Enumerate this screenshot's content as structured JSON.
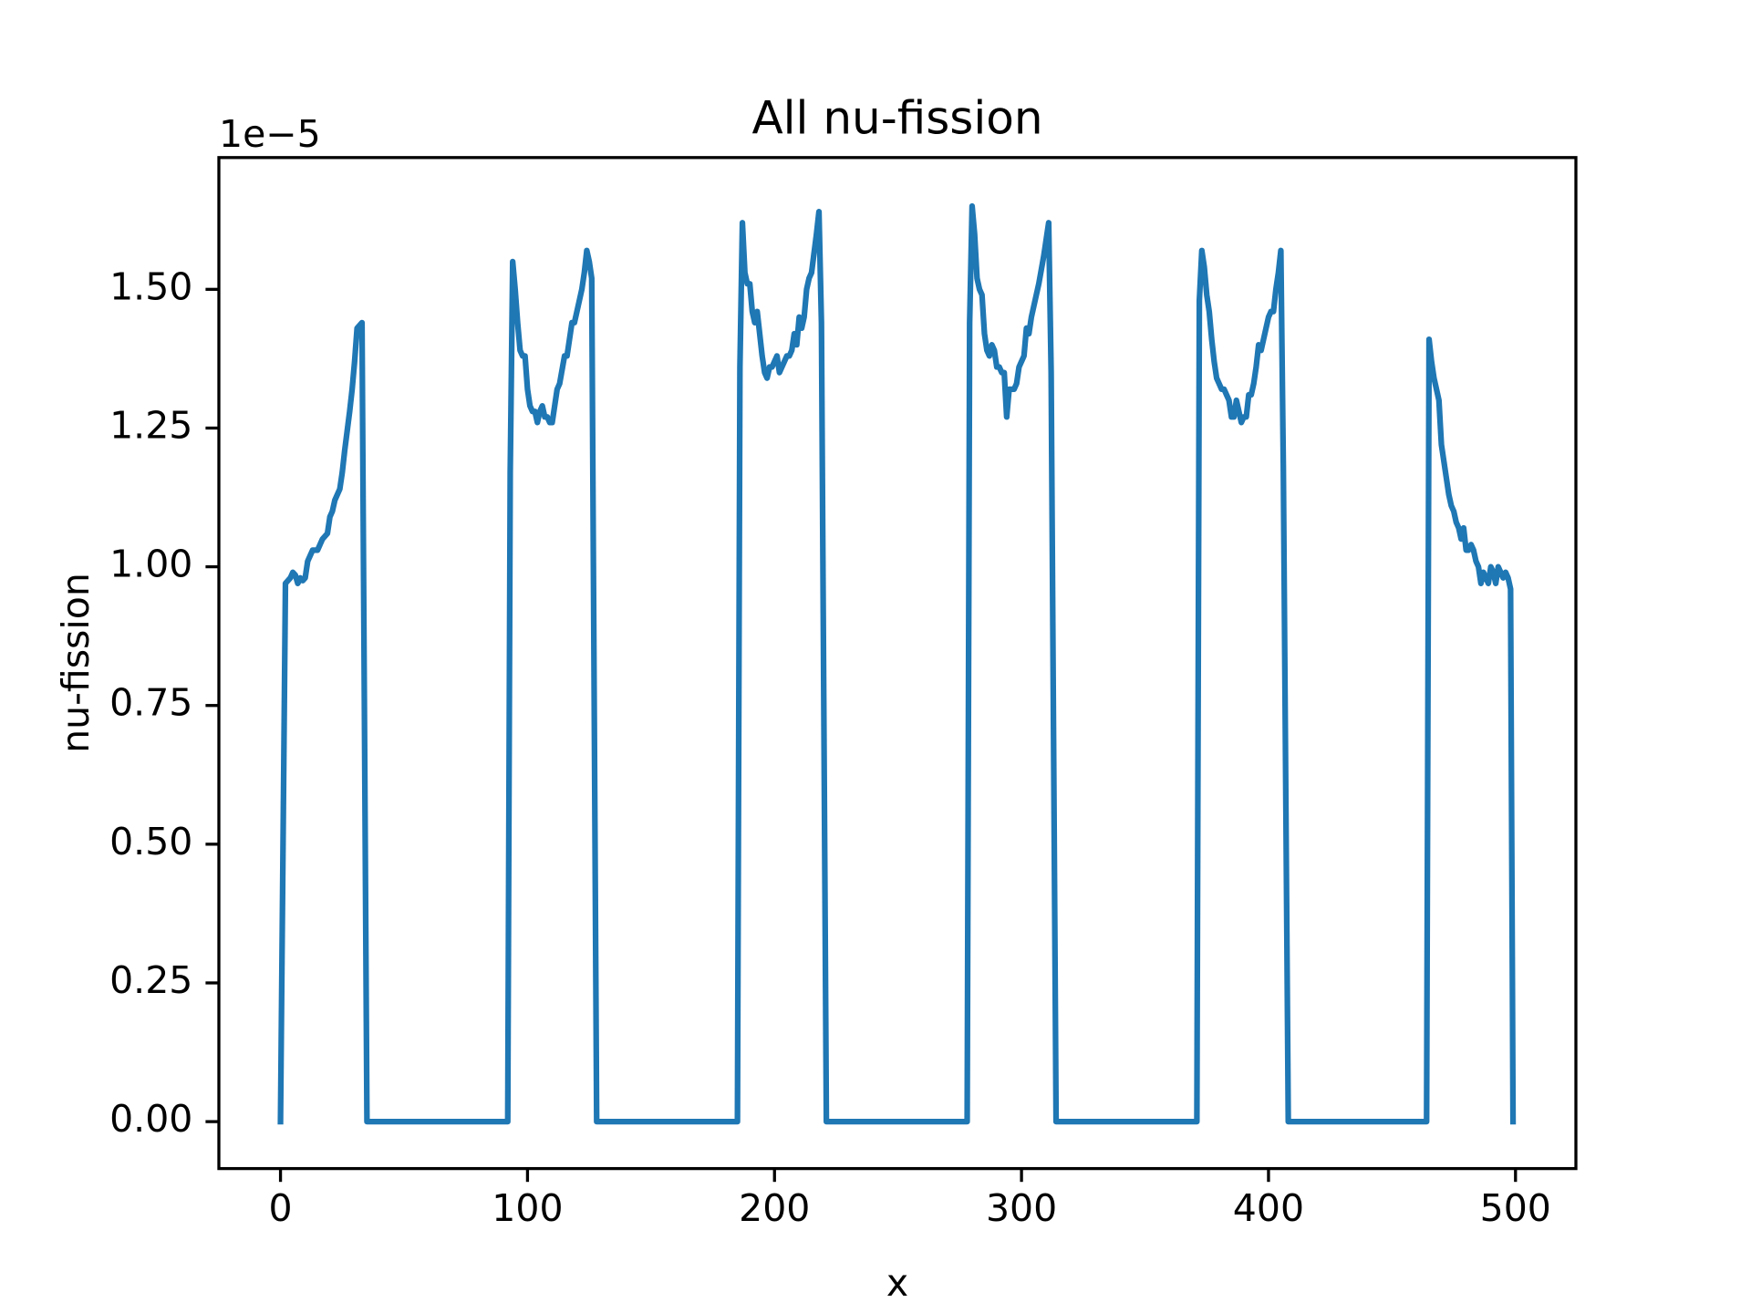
{
  "chart_data": {
    "type": "line",
    "title": "All nu-fission",
    "xlabel": "x",
    "ylabel": "nu-fission",
    "y_offset_text": "1e−5",
    "color": "#1f77b4",
    "x": [
      0,
      2,
      4,
      5,
      6,
      7,
      8,
      9,
      10,
      11,
      12,
      13,
      15,
      16,
      17,
      19,
      20,
      21,
      22,
      24,
      25,
      26,
      28,
      29,
      30,
      31,
      33,
      35,
      92,
      93,
      94,
      95,
      96,
      97,
      98,
      99,
      100,
      101,
      102,
      103,
      104,
      105,
      106,
      107,
      108,
      109,
      110,
      112,
      113,
      115,
      116,
      118,
      119,
      120,
      122,
      123,
      124,
      125,
      126,
      128,
      185,
      186,
      187,
      188,
      189,
      190,
      191,
      192,
      193,
      194,
      195,
      196,
      197,
      198,
      199,
      200,
      201,
      202,
      203,
      204,
      205,
      206,
      207,
      208,
      209,
      210,
      211,
      212,
      213,
      214,
      215,
      217,
      218,
      219,
      221,
      278,
      279,
      280,
      281,
      282,
      283,
      284,
      285,
      286,
      287,
      288,
      289,
      290,
      291,
      292,
      293,
      294,
      295,
      296,
      297,
      298,
      299,
      300,
      301,
      302,
      303,
      304,
      305,
      307,
      309,
      311,
      312,
      314,
      371,
      372,
      373,
      374,
      375,
      376,
      377,
      378,
      379,
      380,
      381,
      382,
      383,
      384,
      385,
      386,
      387,
      388,
      389,
      390,
      391,
      392,
      393,
      394,
      395,
      396,
      397,
      398,
      399,
      400,
      401,
      402,
      403,
      404,
      405,
      406,
      408,
      464,
      465,
      466,
      467,
      468,
      469,
      470,
      471,
      472,
      473,
      474,
      475,
      476,
      477,
      478,
      479,
      480,
      481,
      482,
      483,
      484,
      485,
      486,
      487,
      488,
      489,
      490,
      491,
      492,
      493,
      494,
      495,
      496,
      497,
      498,
      499
    ],
    "values": [
      0,
      0.97,
      0.98,
      0.99,
      0.985,
      0.97,
      0.98,
      0.975,
      0.98,
      1.01,
      1.02,
      1.03,
      1.03,
      1.04,
      1.05,
      1.06,
      1.09,
      1.1,
      1.12,
      1.14,
      1.17,
      1.21,
      1.28,
      1.32,
      1.37,
      1.43,
      1.44,
      0,
      0,
      1.17,
      1.55,
      1.5,
      1.44,
      1.39,
      1.38,
      1.38,
      1.32,
      1.29,
      1.28,
      1.28,
      1.26,
      1.28,
      1.29,
      1.27,
      1.27,
      1.26,
      1.26,
      1.32,
      1.33,
      1.38,
      1.38,
      1.44,
      1.44,
      1.46,
      1.5,
      1.53,
      1.57,
      1.55,
      1.52,
      0,
      0,
      1.36,
      1.62,
      1.53,
      1.51,
      1.51,
      1.46,
      1.44,
      1.46,
      1.42,
      1.38,
      1.35,
      1.34,
      1.36,
      1.36,
      1.37,
      1.38,
      1.35,
      1.36,
      1.37,
      1.38,
      1.38,
      1.39,
      1.42,
      1.4,
      1.45,
      1.43,
      1.45,
      1.5,
      1.52,
      1.53,
      1.6,
      1.64,
      1.44,
      0,
      0,
      1.44,
      1.65,
      1.6,
      1.52,
      1.5,
      1.49,
      1.42,
      1.39,
      1.38,
      1.4,
      1.39,
      1.36,
      1.36,
      1.35,
      1.35,
      1.27,
      1.32,
      1.32,
      1.32,
      1.33,
      1.36,
      1.37,
      1.38,
      1.43,
      1.42,
      1.45,
      1.47,
      1.51,
      1.56,
      1.62,
      1.35,
      0,
      0,
      1.48,
      1.57,
      1.54,
      1.49,
      1.46,
      1.41,
      1.37,
      1.34,
      1.33,
      1.32,
      1.32,
      1.31,
      1.3,
      1.27,
      1.27,
      1.3,
      1.28,
      1.26,
      1.27,
      1.27,
      1.31,
      1.31,
      1.33,
      1.36,
      1.4,
      1.39,
      1.41,
      1.43,
      1.45,
      1.46,
      1.46,
      1.5,
      1.53,
      1.57,
      1.18,
      0,
      0,
      1.41,
      1.37,
      1.34,
      1.32,
      1.3,
      1.22,
      1.19,
      1.16,
      1.13,
      1.11,
      1.1,
      1.08,
      1.07,
      1.05,
      1.07,
      1.03,
      1.03,
      1.04,
      1.03,
      1.01,
      1.0,
      0.97,
      0.99,
      0.98,
      0.97,
      1.0,
      0.99,
      0.97,
      1.0,
      0.99,
      0.98,
      0.99,
      0.98,
      0.96,
      0
    ],
    "xlim": [
      -24.95,
      524.45
    ],
    "ylim": [
      -0.0846,
      1.7375
    ],
    "xticks": [
      0,
      100,
      200,
      300,
      400,
      500
    ],
    "yticks": [
      {
        "value": 0,
        "label": "0.00"
      },
      {
        "value": 0.25,
        "label": "0.25"
      },
      {
        "value": 0.5,
        "label": "0.50"
      },
      {
        "value": 0.75,
        "label": "0.75"
      },
      {
        "value": 1,
        "label": "1.00"
      },
      {
        "value": 1.25,
        "label": "1.25"
      },
      {
        "value": 1.5,
        "label": "1.50"
      }
    ]
  }
}
